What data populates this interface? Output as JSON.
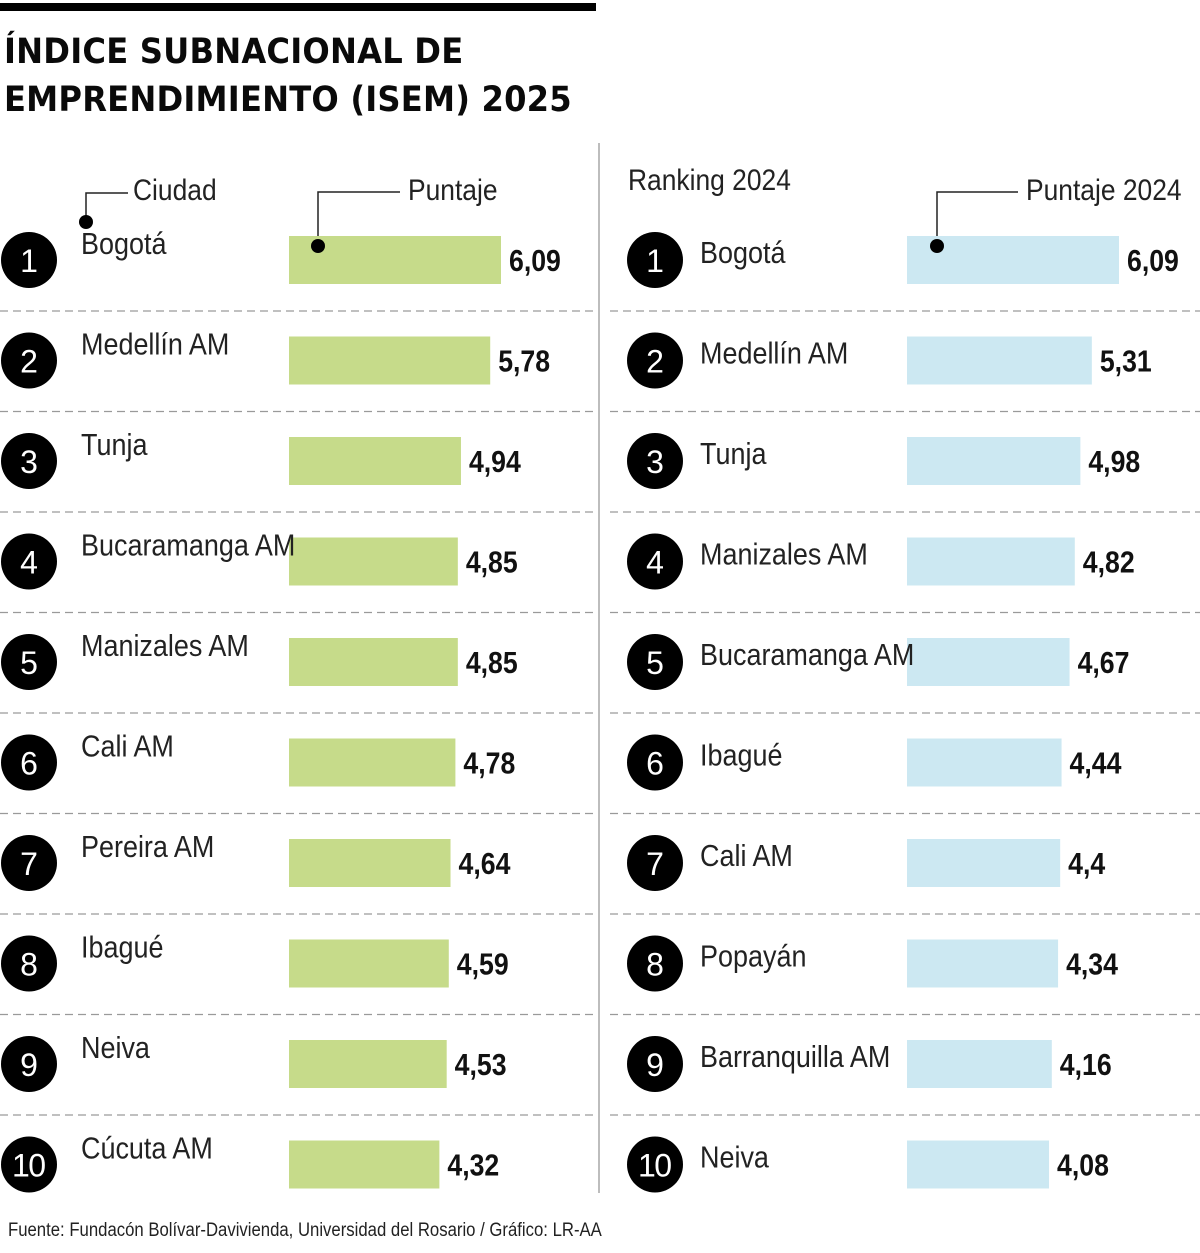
{
  "title_line1": "ÍNDICE SUBNACIONAL DE",
  "title_line2": "EMPRENDIMIENTO (ISEM) 2025",
  "footer": "Fuente: Fundacón Bolívar-Davivienda, Universidad del Rosario / Gráfico: LR-AA",
  "colors": {
    "bar_2025": "#c6db8a",
    "bar_2024": "#cce8f2",
    "badge": "#000000",
    "divider": "#bdbdbd"
  },
  "chart_data": [
    {
      "type": "bar",
      "orientation": "horizontal",
      "header_label": "Ciudad",
      "header_value": "Puntaje",
      "ranks": [
        "1",
        "2",
        "3",
        "4",
        "5",
        "6",
        "7",
        "8",
        "9",
        "10"
      ],
      "categories": [
        "Bogotá",
        "Medellín AM",
        "Tunja",
        "Bucaramanga AM",
        "Manizales AM",
        "Cali AM",
        "Pereira AM",
        "Ibagué",
        "Neiva",
        "Cúcuta AM"
      ],
      "values": [
        6.09,
        5.78,
        4.94,
        4.85,
        4.85,
        4.78,
        4.64,
        4.59,
        4.53,
        4.32
      ],
      "value_labels": [
        "6,09",
        "5,78",
        "4,94",
        "4,85",
        "4,85",
        "4,78",
        "4,64",
        "4,59",
        "4,53",
        "4,32"
      ]
    },
    {
      "type": "bar",
      "orientation": "horizontal",
      "header_label": "Ranking 2024",
      "header_value": "Puntaje 2024",
      "ranks": [
        "1",
        "2",
        "3",
        "4",
        "5",
        "6",
        "7",
        "8",
        "9",
        "10"
      ],
      "categories": [
        "Bogotá",
        "Medellín AM",
        "Tunja",
        "Manizales AM",
        "Bucaramanga AM",
        "Ibagué",
        "Cali AM",
        "Popayán",
        "Barranquilla AM",
        "Neiva"
      ],
      "values": [
        6.09,
        5.31,
        4.98,
        4.82,
        4.67,
        4.44,
        4.4,
        4.34,
        4.16,
        4.08
      ],
      "value_labels": [
        "6,09",
        "5,31",
        "4,98",
        "4,82",
        "4,67",
        "4,44",
        "4,4",
        "4,34",
        "4,16",
        "4,08"
      ]
    }
  ]
}
